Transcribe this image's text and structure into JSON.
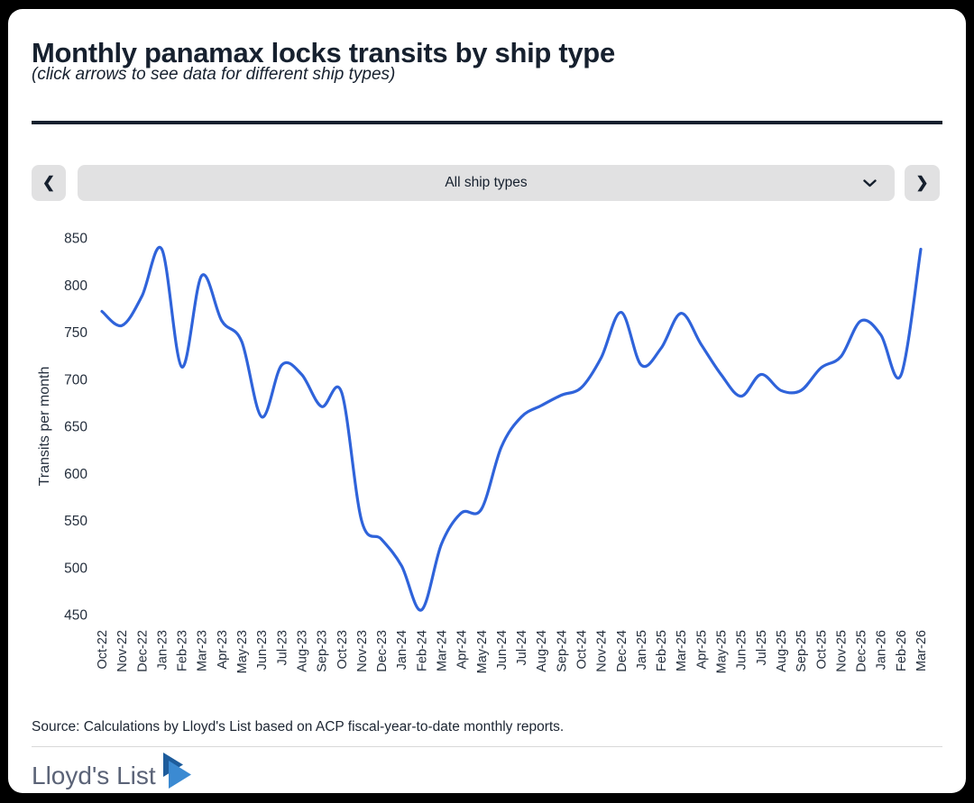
{
  "header": {
    "title": "Monthly panamax locks transits by ship type",
    "subtitle": "(click arrows to see data for different ship types)"
  },
  "controls": {
    "prev_label": "❮",
    "next_label": "❯",
    "ship_type_selected": "All ship types"
  },
  "chart_data": {
    "type": "line",
    "title": "",
    "xlabel": "",
    "ylabel": "Transits per month",
    "ylim": [
      450,
      850
    ],
    "ytick_step": 50,
    "grid": false,
    "legend_position": "none",
    "line_color": "#2f63da",
    "categories": [
      "Oct-22",
      "Nov-22",
      "Dec-22",
      "Jan-23",
      "Feb-23",
      "Mar-23",
      "Apr-23",
      "May-23",
      "Jun-23",
      "Jul-23",
      "Aug-23",
      "Sep-23",
      "Oct-23",
      "Nov-23",
      "Dec-23",
      "Jan-24",
      "Feb-24",
      "Mar-24",
      "Apr-24",
      "May-24",
      "Jun-24",
      "Jul-24",
      "Aug-24",
      "Sep-24",
      "Oct-24",
      "Nov-24",
      "Dec-24",
      "Jan-25",
      "Feb-25",
      "Mar-25",
      "Apr-25",
      "May-25",
      "Jun-25",
      "Jul-25",
      "Aug-25",
      "Sep-25",
      "Oct-25",
      "Nov-25",
      "Dec-25",
      "Jan-26",
      "Feb-26",
      "Mar-26"
    ],
    "series": [
      {
        "name": "All ship types",
        "values": [
          772,
          757,
          788,
          838,
          713,
          810,
          762,
          740,
          660,
          715,
          705,
          671,
          686,
          550,
          530,
          502,
          455,
          525,
          558,
          562,
          628,
          660,
          672,
          683,
          691,
          723,
          771,
          715,
          733,
          770,
          737,
          705,
          682,
          705,
          688,
          688,
          712,
          724,
          762,
          747,
          704,
          838
        ]
      }
    ]
  },
  "footer": {
    "source": "Source: Calculations by Lloyd's List based on ACP fiscal-year-to-date monthly reports.",
    "logo_text": "Lloyd's List"
  },
  "colors": {
    "text_dark": "#16202e",
    "axis_text": "#242e3c",
    "control_bg": "#e1e1e2",
    "logo_text": "#5b6377",
    "logo_mark_dark": "#1d5c9c",
    "logo_mark_light": "#3b8ad2"
  }
}
